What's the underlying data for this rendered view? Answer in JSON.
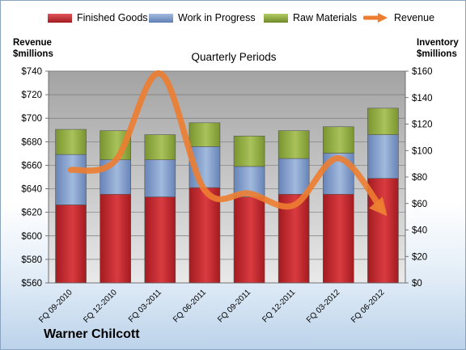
{
  "company": "Warner Chilcott",
  "chart_data": {
    "type": "bar",
    "stacked": true,
    "title": "Quarterly Periods",
    "categories": [
      "FQ 09-2010",
      "FQ 12-2010",
      "FQ 03-2011",
      "FQ 06-2011",
      "FQ 09-2011",
      "FQ 12-2011",
      "FQ 03-2012",
      "FQ 06-2012"
    ],
    "series": [
      {
        "name": "Finished Goods",
        "axis": "right",
        "color": "#c0272d",
        "values": [
          59,
          67,
          65,
          72,
          65,
          67,
          67,
          79
        ]
      },
      {
        "name": "Work in Progress",
        "axis": "right",
        "color": "#7e9bc9",
        "values": [
          38,
          26,
          28,
          31,
          23,
          27,
          31,
          33
        ]
      },
      {
        "name": "Raw Materials",
        "axis": "right",
        "color": "#93b140",
        "values": [
          19,
          22,
          19,
          18,
          23,
          21,
          20,
          20
        ]
      }
    ],
    "line_series": {
      "name": "Revenue",
      "axis": "left",
      "color": "#ed7d31",
      "values": [
        656,
        664,
        738,
        639,
        636,
        626,
        666,
        621
      ]
    },
    "left_axis": {
      "label": "Revenue\n$millions",
      "ylim": [
        560,
        740
      ],
      "ticks": [
        "$560",
        "$580",
        "$600",
        "$620",
        "$640",
        "$660",
        "$680",
        "$700",
        "$720",
        "$740"
      ]
    },
    "right_axis": {
      "label": "Inventory\n$millions",
      "ylim": [
        0,
        160
      ],
      "ticks": [
        "$0",
        "$20",
        "$40",
        "$60",
        "$80",
        "$100",
        "$120",
        "$140",
        "$160"
      ]
    },
    "legend_position": "top",
    "grid": true
  }
}
